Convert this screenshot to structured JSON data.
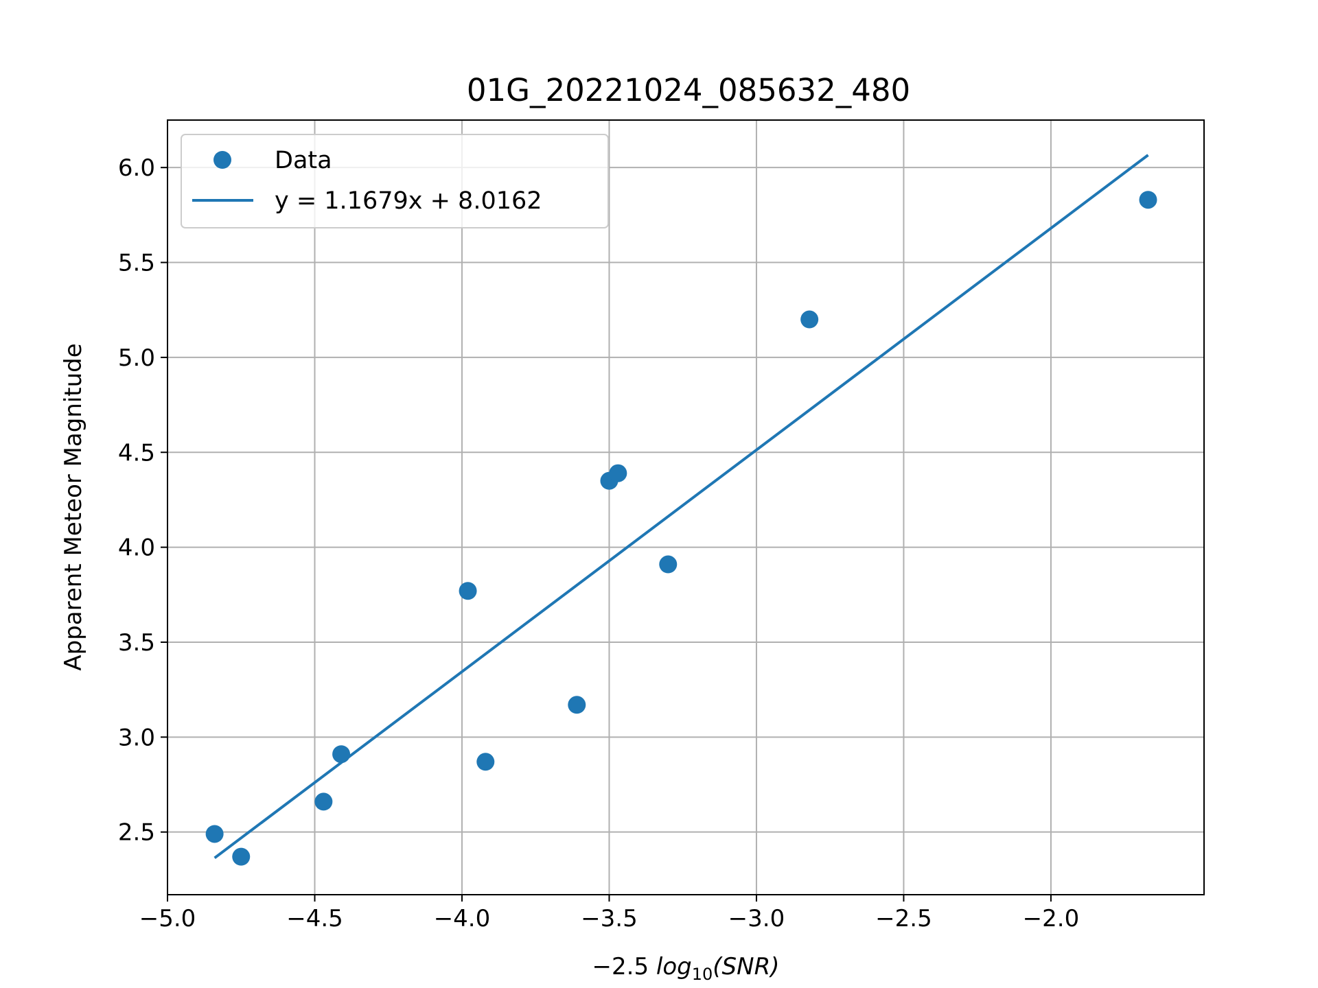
{
  "chart_data": {
    "type": "scatter",
    "title": "01G_20221024_085632_480",
    "xlabel": "−2.5 log10(SNR)",
    "xlabel_parts": {
      "prefix": "−2.5 ",
      "func": "log",
      "sub": "10",
      "arg": "(SNR)"
    },
    "ylabel": "Apparent Meteor Magnitude",
    "xlim": [
      -5.0,
      -1.48
    ],
    "ylim": [
      2.17,
      6.25
    ],
    "xticks": [
      -5.0,
      -4.5,
      -4.0,
      -3.5,
      -3.0,
      -2.5,
      -2.0
    ],
    "xtick_labels": [
      "−5.0",
      "−4.5",
      "−4.0",
      "−3.5",
      "−3.0",
      "−2.5",
      "−2.0"
    ],
    "yticks": [
      2.5,
      3.0,
      3.5,
      4.0,
      4.5,
      5.0,
      5.5,
      6.0
    ],
    "ytick_labels": [
      "2.5",
      "3.0",
      "3.5",
      "4.0",
      "4.5",
      "5.0",
      "5.5",
      "6.0"
    ],
    "grid": true,
    "legend_position": "top-left",
    "series": [
      {
        "name": "Data",
        "kind": "scatter",
        "color": "#1f77b4",
        "points": [
          {
            "x": -4.84,
            "y": 2.49
          },
          {
            "x": -4.75,
            "y": 2.37
          },
          {
            "x": -4.47,
            "y": 2.66
          },
          {
            "x": -4.41,
            "y": 2.91
          },
          {
            "x": -3.98,
            "y": 3.77
          },
          {
            "x": -3.92,
            "y": 2.87
          },
          {
            "x": -3.61,
            "y": 3.17
          },
          {
            "x": -3.5,
            "y": 4.35
          },
          {
            "x": -3.47,
            "y": 4.39
          },
          {
            "x": -3.3,
            "y": 3.91
          },
          {
            "x": -2.82,
            "y": 5.2
          },
          {
            "x": -1.67,
            "y": 5.83
          }
        ]
      },
      {
        "name": "y = 1.1679x + 8.0162",
        "kind": "line",
        "color": "#1f77b4",
        "slope": 1.1679,
        "intercept": 8.0162,
        "x_range": [
          -4.84,
          -1.67
        ]
      }
    ]
  }
}
